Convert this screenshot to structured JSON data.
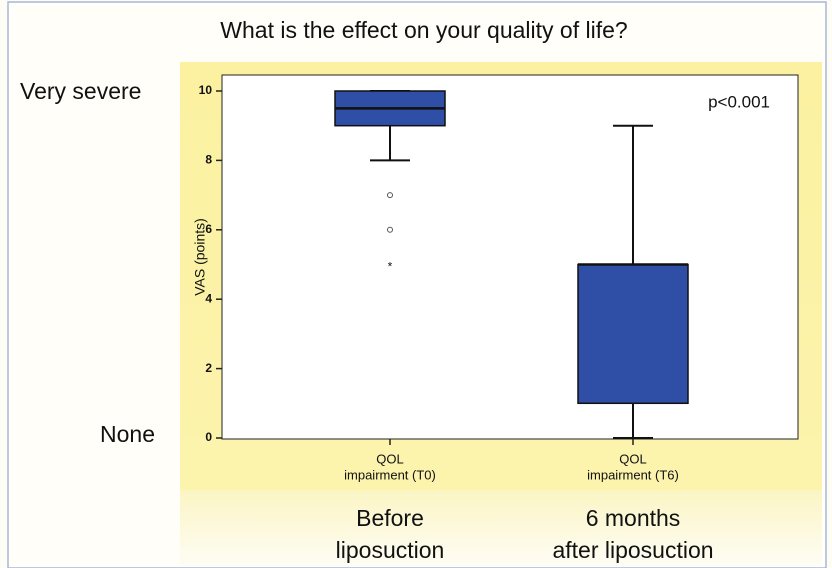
{
  "chart_data": {
    "type": "box",
    "title": "What is the effect on your quality of life?",
    "ylabel": "VAS (points)",
    "categories": [
      [
        "QOL",
        "impairment (T0)"
      ],
      [
        "QOL",
        "impairment (T6)"
      ]
    ],
    "boxes": [
      {
        "min": 8,
        "q1": 9,
        "median": 9.5,
        "q3": 10,
        "max": 10,
        "outliers": [
          7,
          6,
          5
        ],
        "outlier_symbols": [
          "circle",
          "circle",
          "star"
        ]
      },
      {
        "min": 0,
        "q1": 1,
        "median": 5,
        "q3": 5,
        "max": 9,
        "outliers": [],
        "outlier_symbols": []
      }
    ],
    "color": "#2f4ea6",
    "ylim": [
      0,
      10
    ],
    "yticks": [
      0,
      2,
      4,
      6,
      8,
      10
    ],
    "annotations": {
      "p_value": "p<0.001",
      "top_scale": "Very severe",
      "bottom_scale": "None",
      "group_labels": [
        [
          "Before",
          "liposuction"
        ],
        [
          "6 months",
          "after liposuction"
        ]
      ]
    }
  }
}
